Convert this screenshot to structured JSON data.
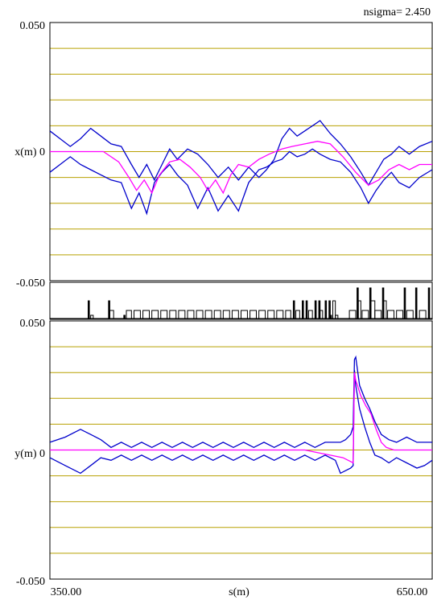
{
  "header": {
    "nsigma": "nsigma= 2.450"
  },
  "colors": {
    "grid": "#b8a000",
    "envelope": "#0000cc",
    "orbit": "#ff00ff",
    "elements": "#000000"
  },
  "chart_data": [
    {
      "type": "line",
      "ylabel": "x(m) 0",
      "ylim": [
        -0.05,
        0.05
      ],
      "yticks": [
        "0.050",
        "-0.050"
      ],
      "grid": true,
      "series": [
        {
          "role": "upper",
          "color": "#0000cc",
          "x": [
            350,
            358,
            366,
            374,
            382,
            390,
            398,
            406,
            414,
            420,
            426,
            432,
            438,
            444,
            450,
            458,
            466,
            474,
            482,
            490,
            498,
            506,
            514,
            520,
            526,
            532,
            538,
            544,
            550,
            556,
            562,
            570,
            578,
            586,
            594,
            600,
            606,
            612,
            618,
            624,
            632,
            640,
            650
          ],
          "y": [
            0.008,
            0.005,
            0.002,
            0.005,
            0.009,
            0.006,
            0.003,
            0.002,
            -0.005,
            -0.01,
            -0.005,
            -0.011,
            -0.005,
            0.001,
            -0.003,
            0.001,
            -0.001,
            -0.005,
            -0.01,
            -0.006,
            -0.011,
            -0.006,
            -0.01,
            -0.007,
            -0.003,
            0.005,
            0.009,
            0.006,
            0.008,
            0.01,
            0.012,
            0.007,
            0.003,
            -0.002,
            -0.008,
            -0.013,
            -0.008,
            -0.003,
            -0.001,
            0.002,
            -0.001,
            0.002,
            0.004
          ]
        },
        {
          "role": "lower",
          "color": "#0000cc",
          "x": [
            350,
            358,
            366,
            374,
            382,
            390,
            398,
            406,
            414,
            420,
            426,
            432,
            438,
            444,
            450,
            458,
            466,
            474,
            482,
            490,
            498,
            506,
            514,
            520,
            526,
            532,
            538,
            544,
            550,
            556,
            562,
            570,
            578,
            586,
            594,
            600,
            606,
            612,
            618,
            624,
            632,
            640,
            650
          ],
          "y": [
            -0.008,
            -0.005,
            -0.002,
            -0.005,
            -0.007,
            -0.009,
            -0.011,
            -0.012,
            -0.022,
            -0.016,
            -0.024,
            -0.012,
            -0.008,
            -0.005,
            -0.009,
            -0.013,
            -0.022,
            -0.014,
            -0.023,
            -0.017,
            -0.023,
            -0.012,
            -0.007,
            -0.006,
            -0.004,
            -0.003,
            0.0,
            -0.002,
            -0.001,
            0.001,
            -0.001,
            -0.003,
            -0.004,
            -0.008,
            -0.014,
            -0.02,
            -0.015,
            -0.011,
            -0.008,
            -0.012,
            -0.014,
            -0.01,
            -0.007
          ]
        },
        {
          "role": "orbit",
          "color": "#ff00ff",
          "x": [
            350,
            380,
            392,
            404,
            412,
            418,
            424,
            430,
            436,
            444,
            452,
            460,
            468,
            474,
            480,
            486,
            492,
            498,
            506,
            514,
            522,
            532,
            540,
            550,
            560,
            570,
            580,
            590,
            600,
            608,
            616,
            624,
            632,
            640,
            650
          ],
          "y": [
            0.0,
            0.0,
            0.0,
            -0.004,
            -0.01,
            -0.015,
            -0.011,
            -0.016,
            -0.009,
            -0.004,
            -0.003,
            -0.006,
            -0.01,
            -0.015,
            -0.011,
            -0.016,
            -0.009,
            -0.005,
            -0.006,
            -0.003,
            -0.001,
            0.001,
            0.002,
            0.003,
            0.004,
            0.003,
            -0.002,
            -0.008,
            -0.013,
            -0.011,
            -0.007,
            -0.005,
            -0.007,
            -0.005,
            -0.005
          ]
        }
      ]
    },
    {
      "type": "bar",
      "ylabel": "",
      "elements": [
        {
          "s": 380,
          "w": 1,
          "h": 0.55
        },
        {
          "s": 382,
          "w": 2,
          "h": 0.1
        },
        {
          "s": 396,
          "w": 1,
          "h": 0.55
        },
        {
          "s": 397,
          "w": 3,
          "h": 0.25
        },
        {
          "s": 408,
          "w": 1,
          "h": 0.1
        },
        {
          "s": 410,
          "w": 4,
          "h": 0.25
        },
        {
          "s": 416,
          "w": 5,
          "h": 0.25
        },
        {
          "s": 423,
          "w": 5,
          "h": 0.25
        },
        {
          "s": 430,
          "w": 5,
          "h": 0.25
        },
        {
          "s": 437,
          "w": 5,
          "h": 0.25
        },
        {
          "s": 444,
          "w": 5,
          "h": 0.25
        },
        {
          "s": 451,
          "w": 5,
          "h": 0.25
        },
        {
          "s": 458,
          "w": 5,
          "h": 0.25
        },
        {
          "s": 465,
          "w": 5,
          "h": 0.25
        },
        {
          "s": 472,
          "w": 5,
          "h": 0.25
        },
        {
          "s": 479,
          "w": 5,
          "h": 0.25
        },
        {
          "s": 486,
          "w": 5,
          "h": 0.25
        },
        {
          "s": 493,
          "w": 5,
          "h": 0.25
        },
        {
          "s": 500,
          "w": 5,
          "h": 0.25
        },
        {
          "s": 507,
          "w": 5,
          "h": 0.25
        },
        {
          "s": 514,
          "w": 5,
          "h": 0.25
        },
        {
          "s": 521,
          "w": 5,
          "h": 0.25
        },
        {
          "s": 528,
          "w": 5,
          "h": 0.25
        },
        {
          "s": 535,
          "w": 4,
          "h": 0.25
        },
        {
          "s": 541,
          "w": 1,
          "h": 0.55
        },
        {
          "s": 543,
          "w": 3,
          "h": 0.25
        },
        {
          "s": 548,
          "w": 1,
          "h": 0.55
        },
        {
          "s": 551,
          "w": 1,
          "h": 0.55
        },
        {
          "s": 553,
          "w": 3,
          "h": 0.25
        },
        {
          "s": 558,
          "w": 1,
          "h": 0.55
        },
        {
          "s": 561,
          "w": 1,
          "h": 0.55
        },
        {
          "s": 562,
          "w": 2,
          "h": 0.25
        },
        {
          "s": 566,
          "w": 1,
          "h": 0.55
        },
        {
          "s": 569,
          "w": 1,
          "h": 0.55
        },
        {
          "s": 570,
          "w": 1,
          "h": 0.1
        },
        {
          "s": 572,
          "w": 2,
          "h": 0.55
        },
        {
          "s": 574,
          "w": 2,
          "h": 0.1
        },
        {
          "s": 585,
          "w": 5,
          "h": 0.25
        },
        {
          "s": 591,
          "w": 1,
          "h": 0.95
        },
        {
          "s": 592,
          "w": 2,
          "h": 0.55
        },
        {
          "s": 595,
          "w": 5,
          "h": 0.25
        },
        {
          "s": 601,
          "w": 1,
          "h": 0.95
        },
        {
          "s": 602,
          "w": 3,
          "h": 0.55
        },
        {
          "s": 605,
          "w": 5,
          "h": 0.25
        },
        {
          "s": 611,
          "w": 1,
          "h": 0.95
        },
        {
          "s": 612,
          "w": 2,
          "h": 0.55
        },
        {
          "s": 615,
          "w": 5,
          "h": 0.25
        },
        {
          "s": 622,
          "w": 5,
          "h": 0.25
        },
        {
          "s": 628,
          "w": 1,
          "h": 0.95
        },
        {
          "s": 630,
          "w": 5,
          "h": 0.25
        },
        {
          "s": 637,
          "w": 1,
          "h": 0.95
        },
        {
          "s": 640,
          "w": 5,
          "h": 0.25
        },
        {
          "s": 647,
          "w": 1,
          "h": 0.95
        }
      ]
    },
    {
      "type": "line",
      "ylabel": "y(m) 0",
      "xlabel": "s(m)",
      "ylim": [
        -0.05,
        0.05
      ],
      "yticks": [
        "0.050",
        "-0.050"
      ],
      "xticks": [
        "350.00",
        "650.00"
      ],
      "xlim": [
        350,
        650
      ],
      "grid": true,
      "series": [
        {
          "role": "upper",
          "color": "#0000cc",
          "x": [
            350,
            362,
            374,
            382,
            390,
            398,
            406,
            414,
            422,
            430,
            438,
            446,
            454,
            462,
            470,
            478,
            486,
            494,
            502,
            510,
            518,
            526,
            534,
            542,
            550,
            558,
            566,
            574,
            578,
            582,
            586,
            588,
            589,
            590,
            593,
            597,
            601,
            605,
            610,
            616,
            622,
            630,
            638,
            644,
            650
          ],
          "y": [
            0.003,
            0.005,
            0.008,
            0.006,
            0.004,
            0.001,
            0.003,
            0.001,
            0.003,
            0.001,
            0.003,
            0.001,
            0.003,
            0.001,
            0.003,
            0.001,
            0.003,
            0.001,
            0.003,
            0.001,
            0.003,
            0.001,
            0.003,
            0.001,
            0.003,
            0.001,
            0.003,
            0.003,
            0.003,
            0.004,
            0.006,
            0.009,
            0.035,
            0.036,
            0.025,
            0.02,
            0.016,
            0.011,
            0.006,
            0.004,
            0.003,
            0.005,
            0.003,
            0.003,
            0.003
          ]
        },
        {
          "role": "lower",
          "color": "#0000cc",
          "x": [
            350,
            362,
            374,
            382,
            390,
            398,
            406,
            414,
            422,
            430,
            438,
            446,
            454,
            462,
            470,
            478,
            486,
            494,
            502,
            510,
            518,
            526,
            534,
            542,
            550,
            558,
            566,
            574,
            578,
            582,
            586,
            588,
            589,
            590,
            593,
            597,
            601,
            605,
            610,
            616,
            622,
            630,
            638,
            644,
            650
          ],
          "y": [
            -0.003,
            -0.006,
            -0.009,
            -0.006,
            -0.003,
            -0.004,
            -0.002,
            -0.004,
            -0.002,
            -0.004,
            -0.002,
            -0.004,
            -0.002,
            -0.004,
            -0.002,
            -0.004,
            -0.002,
            -0.004,
            -0.002,
            -0.004,
            -0.002,
            -0.004,
            -0.002,
            -0.004,
            -0.002,
            -0.004,
            -0.002,
            -0.004,
            -0.009,
            -0.008,
            -0.007,
            -0.006,
            0.031,
            0.025,
            0.016,
            0.009,
            0.003,
            -0.002,
            -0.003,
            -0.005,
            -0.003,
            -0.005,
            -0.007,
            -0.006,
            -0.004
          ]
        },
        {
          "role": "orbit",
          "color": "#ff00ff",
          "x": [
            350,
            400,
            450,
            500,
            540,
            550,
            560,
            570,
            580,
            588,
            589,
            590,
            594,
            598,
            602,
            606,
            610,
            614,
            620,
            630,
            650
          ],
          "y": [
            0.0,
            0.0,
            0.0,
            0.0,
            0.0,
            0.0,
            -0.001,
            -0.002,
            -0.003,
            -0.005,
            0.03,
            0.027,
            0.021,
            0.017,
            0.014,
            0.008,
            0.003,
            0.001,
            0.0,
            0.0,
            0.0
          ]
        }
      ]
    }
  ]
}
